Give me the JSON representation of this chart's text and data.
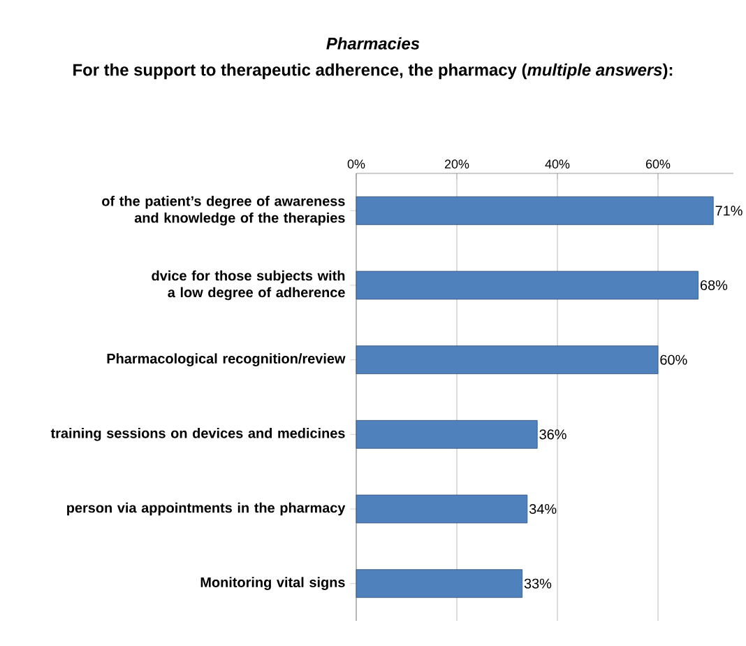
{
  "chart_data": {
    "type": "bar",
    "orientation": "horizontal",
    "title": "*Pharmacies*",
    "subtitle": "For the support to therapeutic adherence, the pharmacy (*multiple answers*):",
    "categories": [
      "of the patient’s degree of awareness and knowledge of the therapies",
      "dvice for those subjects with a low degree of adherence",
      "Pharmacological recognition/review",
      "training sessions on devices and medicines",
      "person via appointments in the pharmacy",
      "Monitoring vital signs"
    ],
    "values": [
      71,
      68,
      60,
      36,
      34,
      33
    ],
    "value_labels": [
      "71%",
      "68%",
      "60%",
      "36%",
      "34%",
      "33%"
    ],
    "color": "#4f81bd",
    "xlim": [
      0,
      75
    ],
    "xticks": [
      {
        "value": 0,
        "label": "0%"
      },
      {
        "value": 20,
        "label": "20%"
      },
      {
        "value": 40,
        "label": "40%"
      },
      {
        "value": 60,
        "label": "60%"
      }
    ],
    "grid": "x"
  }
}
